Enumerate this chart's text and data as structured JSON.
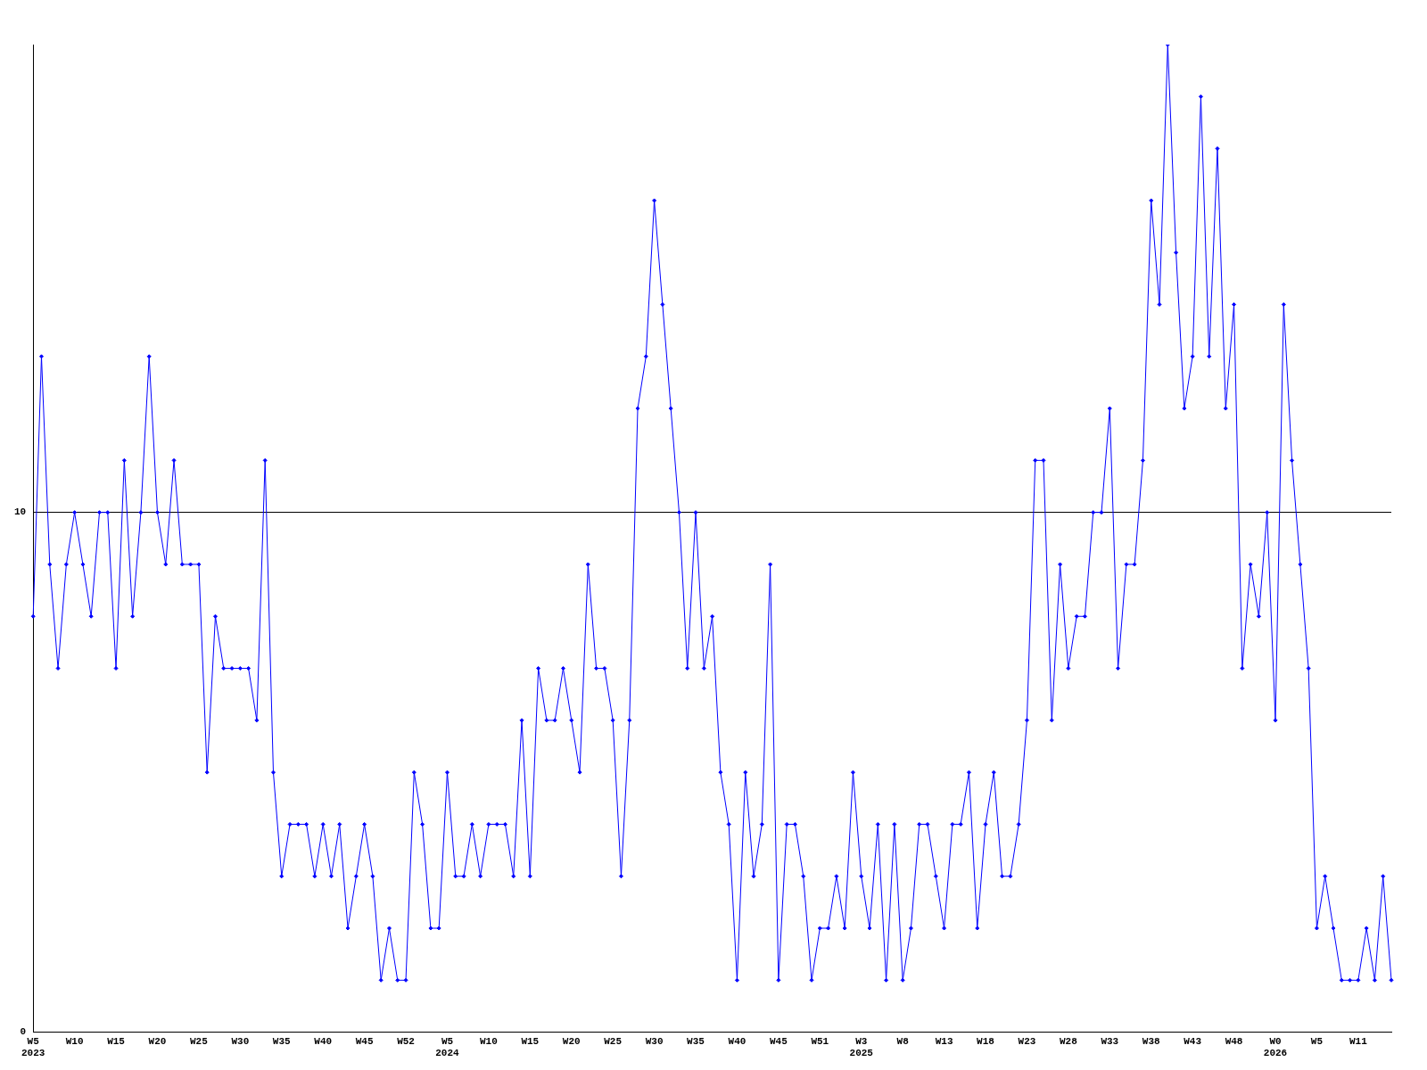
{
  "chart_data": {
    "type": "line",
    "categories": [
      "W5\n2023",
      null,
      null,
      null,
      null,
      "W10",
      null,
      null,
      null,
      null,
      "W15",
      null,
      null,
      null,
      null,
      "W20",
      null,
      null,
      null,
      null,
      "W25",
      null,
      null,
      null,
      null,
      "W30",
      null,
      null,
      null,
      null,
      "W35",
      null,
      null,
      null,
      null,
      "W40",
      null,
      null,
      null,
      null,
      "W45",
      null,
      null,
      null,
      null,
      "W52",
      null,
      null,
      null,
      null,
      "W5\n2024",
      null,
      null,
      null,
      null,
      "W10",
      null,
      null,
      null,
      null,
      "W15",
      null,
      null,
      null,
      null,
      "W20",
      null,
      null,
      null,
      null,
      "W25",
      null,
      null,
      null,
      null,
      "W30",
      null,
      null,
      null,
      null,
      "W35",
      null,
      null,
      null,
      null,
      "W40",
      null,
      null,
      null,
      null,
      "W45",
      null,
      null,
      null,
      null,
      "W51",
      null,
      null,
      null,
      null,
      "W3\n2025",
      null,
      null,
      null,
      null,
      "W8",
      null,
      null,
      null,
      null,
      "W13",
      null,
      null,
      null,
      null,
      "W18",
      null,
      null,
      null,
      null,
      "W23",
      null,
      null,
      null,
      null,
      "W28",
      null,
      null,
      null,
      null,
      "W33",
      null,
      null,
      null,
      null,
      "W38",
      null,
      null,
      null,
      null,
      "W43",
      null,
      null,
      null,
      null,
      "W48",
      null,
      null,
      null,
      null,
      "W0\n2026",
      null,
      null,
      null,
      null,
      "W5",
      null,
      null,
      null,
      null,
      "W11",
      null,
      null,
      null,
      null
    ],
    "series": [
      {
        "color": "#0000ff",
        "values": [
          8,
          13,
          9,
          7,
          9,
          10,
          9,
          8,
          10,
          10,
          7,
          11,
          8,
          10,
          13,
          10,
          9,
          11,
          9,
          9,
          9,
          5,
          8,
          7,
          7,
          7,
          7,
          6,
          11,
          5,
          3,
          4,
          4,
          4,
          3,
          4,
          3,
          4,
          2,
          3,
          4,
          3,
          1,
          2,
          1,
          1,
          5,
          4,
          2,
          2,
          5,
          3,
          3,
          4,
          3,
          4,
          4,
          4,
          3,
          6,
          3,
          7,
          6,
          6,
          7,
          6,
          5,
          9,
          7,
          7,
          6,
          3,
          6,
          12,
          13,
          16,
          14,
          12,
          10,
          7,
          10,
          7,
          8,
          5,
          4,
          1,
          5,
          3,
          4,
          9,
          1,
          4,
          4,
          3,
          1,
          2,
          2,
          3,
          2,
          5,
          3,
          2,
          4,
          1,
          4,
          1,
          2,
          4,
          4,
          3,
          2,
          4,
          4,
          5,
          2,
          4,
          5,
          3,
          3,
          4,
          6,
          11,
          11,
          6,
          9,
          7,
          8,
          8,
          10,
          10,
          12,
          7,
          9,
          9,
          11,
          16,
          14,
          19,
          15,
          12,
          13,
          18,
          13,
          17,
          12,
          14,
          7,
          9,
          8,
          10,
          6,
          14,
          11,
          9,
          7,
          2,
          3,
          2,
          1,
          1,
          1,
          2,
          1,
          3,
          1
        ]
      }
    ],
    "ylim": [
      0,
      19
    ],
    "yticks": [
      0,
      10
    ],
    "grid": "y",
    "legend": false,
    "marker": "diamond",
    "line_style": "solid"
  }
}
